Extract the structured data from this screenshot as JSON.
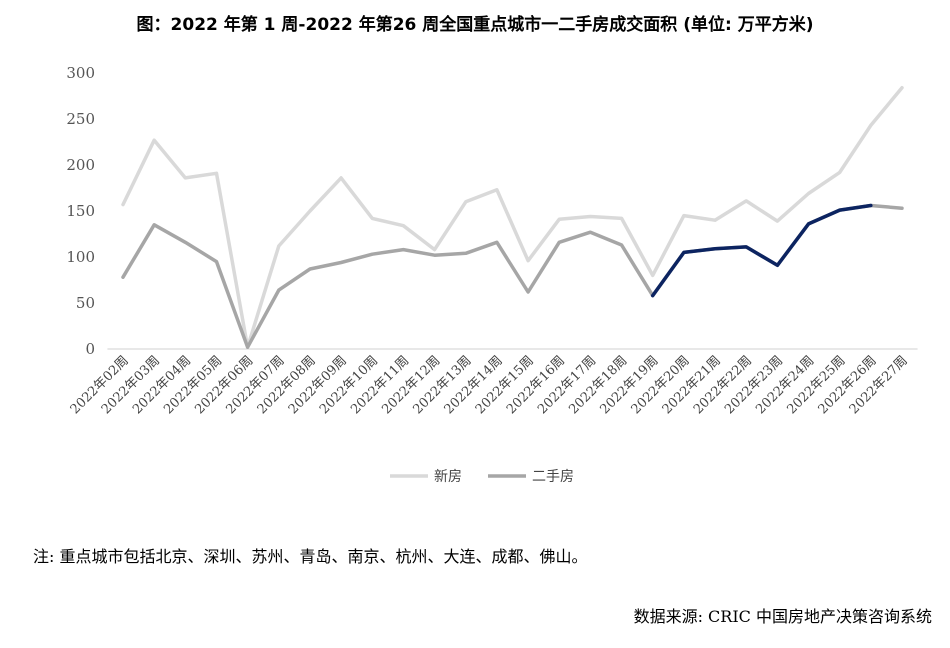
{
  "chart_data": {
    "type": "line",
    "title": "图：2022 年第 1 周-2022 年第26 周全国重点城市一二手房成交面积 (单位: 万平方米)",
    "xlabel": "",
    "ylabel": "",
    "ylim": [
      0,
      300
    ],
    "yticks": [
      0,
      50,
      100,
      150,
      200,
      250,
      300
    ],
    "grid": false,
    "legend_position": "bottom-center",
    "categories": [
      "2022年02周",
      "2022年03周",
      "2022年04周",
      "2022年05周",
      "2022年06周",
      "2022年07周",
      "2022年08周",
      "2022年09周",
      "2022年10周",
      "2022年11周",
      "2022年12周",
      "2022年13周",
      "2022年14周",
      "2022年15周",
      "2022年16周",
      "2022年17周",
      "2022年18周",
      "2022年19周",
      "2022年20周",
      "2022年21周",
      "2022年22周",
      "2022年23周",
      "2022年24周",
      "2022年25周",
      "2022年26周",
      "2022年27周"
    ],
    "series": [
      {
        "name": "新房",
        "color": "#d9d9d9",
        "values": [
          157,
          227,
          186,
          191,
          2,
          112,
          150,
          186,
          142,
          134,
          108,
          160,
          173,
          96,
          141,
          144,
          142,
          80,
          145,
          140,
          161,
          139,
          169,
          192,
          243,
          284
        ]
      },
      {
        "name": "二手房",
        "color": "#a6a6a6",
        "values": [
          78,
          135,
          116,
          95,
          2,
          64,
          87,
          94,
          103,
          108,
          102,
          104,
          116,
          62,
          116,
          127,
          113,
          58,
          105,
          109,
          111,
          91,
          136,
          151,
          156,
          153
        ]
      },
      {
        "name": "",
        "color": "#0c2461",
        "highlight_range": [
          "2022年19周",
          "2022年26周"
        ],
        "values": [
          null,
          null,
          null,
          null,
          null,
          null,
          null,
          null,
          null,
          null,
          null,
          null,
          null,
          null,
          null,
          null,
          null,
          58,
          105,
          109,
          111,
          91,
          136,
          151,
          156,
          null
        ]
      }
    ]
  },
  "footnote": "注: 重点城市包括北京、深圳、苏州、青岛、南京、杭州、大连、成都、佛山。",
  "source": "数据来源: CRIC 中国房地产决策咨询系统"
}
